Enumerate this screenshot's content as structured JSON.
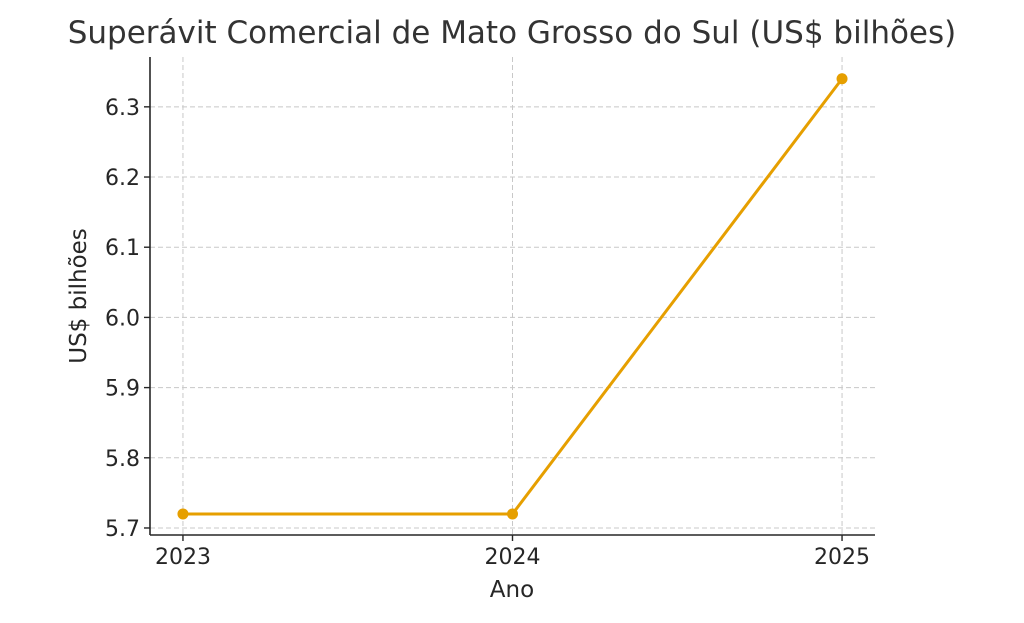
{
  "chart_data": {
    "type": "line",
    "title": "Superávit Comercial de Mato Grosso do Sul (US$ bilhões)",
    "xlabel": "Ano",
    "ylabel": "US$ bilhões",
    "x": [
      2023,
      2024,
      2025
    ],
    "series": [
      {
        "values": [
          5.72,
          5.72,
          6.34
        ],
        "color": "#E69F00"
      }
    ],
    "xticks": [
      "2023",
      "2024",
      "2025"
    ],
    "yticks": [
      "5.7",
      "5.8",
      "5.9",
      "6.0",
      "6.1",
      "6.2",
      "6.3"
    ],
    "xlim": [
      2022.9,
      2025.1
    ],
    "ylim": [
      5.69,
      6.371
    ],
    "grid": true,
    "legend": "none"
  }
}
